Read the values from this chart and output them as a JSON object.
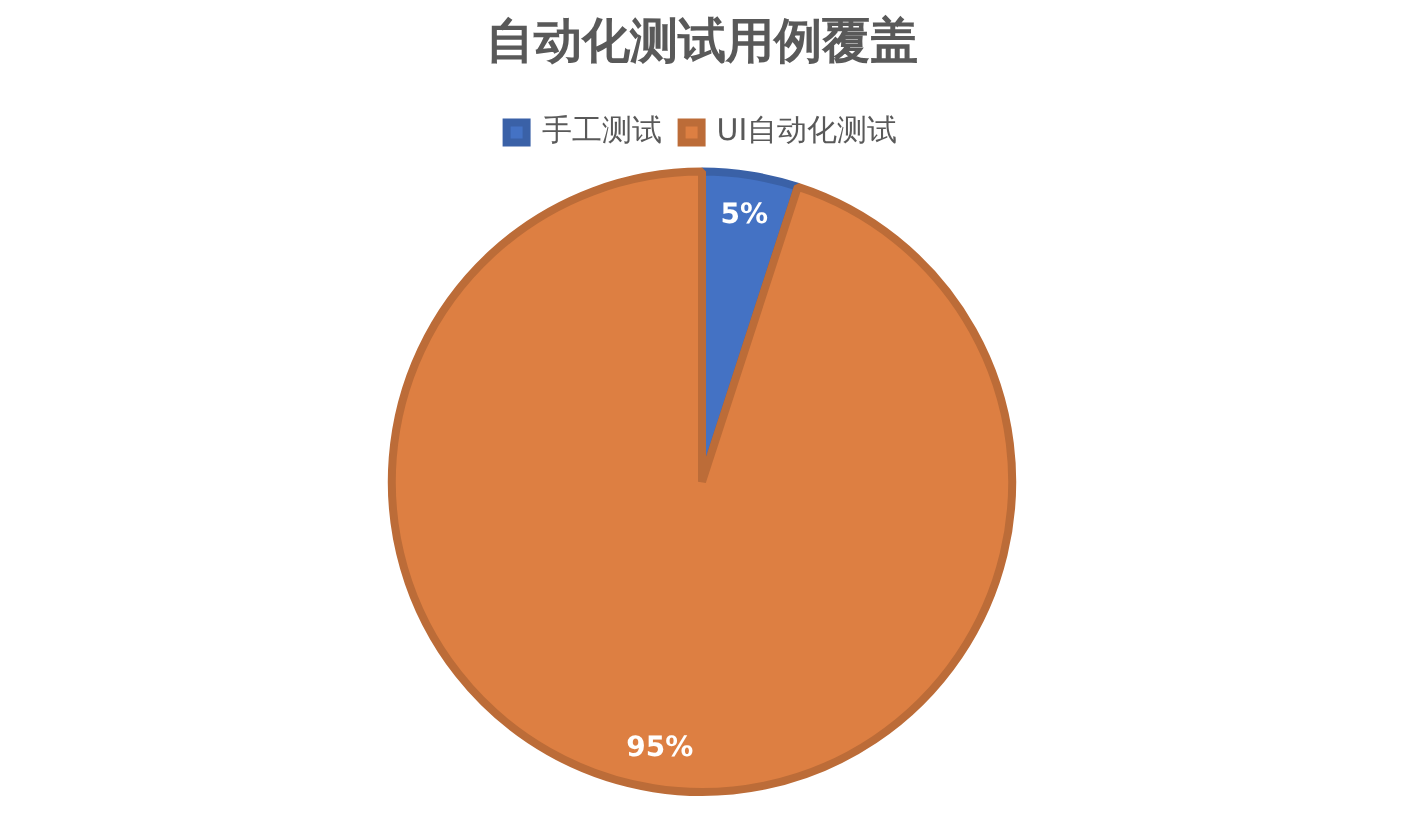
{
  "chart_data": {
    "type": "pie",
    "title": "自动化测试用例覆盖",
    "categories": [
      "手工测试",
      "UI自动化测试"
    ],
    "values": [
      5,
      95
    ],
    "colors": [
      "#4472c4",
      "#dd7f42"
    ],
    "value_labels": [
      "5%",
      "95%"
    ],
    "legend": "top"
  }
}
